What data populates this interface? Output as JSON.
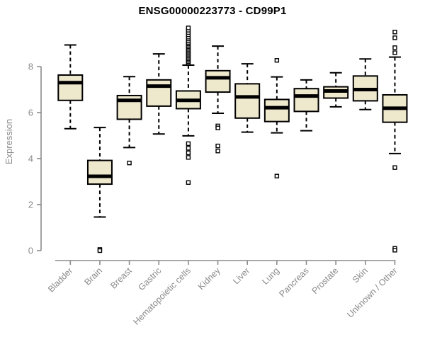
{
  "chart_data": {
    "type": "boxplot",
    "title": "ENSG00000223773 - CD99P1",
    "xlabel": "",
    "ylabel": "Expression",
    "yticks": [
      0,
      2,
      4,
      6,
      8
    ],
    "ylim": [
      0,
      9.8
    ],
    "grid": false,
    "legend": "none",
    "categories": [
      "Bladder",
      "Brain",
      "Breast",
      "Gastric",
      "Hematopoietic cells",
      "Kidney",
      "Liver",
      "Lung",
      "Pancreas",
      "Prostate",
      "Skin",
      "Unknown / Other"
    ],
    "series": [
      {
        "label": "Bladder",
        "whislo": 5.3,
        "q1": 6.53,
        "med": 7.3,
        "q3": 7.63,
        "whishi": 8.94,
        "outliers": []
      },
      {
        "label": "Brain",
        "whislo": 1.46,
        "q1": 2.89,
        "med": 3.23,
        "q3": 3.92,
        "whishi": 5.35,
        "outliers": [
          0.05,
          0.0
        ]
      },
      {
        "label": "Breast",
        "whislo": 4.48,
        "q1": 5.71,
        "med": 6.53,
        "q3": 6.74,
        "whishi": 7.56,
        "outliers": [
          3.81
        ]
      },
      {
        "label": "Gastric",
        "whislo": 5.07,
        "q1": 6.28,
        "med": 7.15,
        "q3": 7.42,
        "whishi": 8.55,
        "outliers": []
      },
      {
        "label": "Hematopoietic cells",
        "whislo": 4.99,
        "q1": 6.17,
        "med": 6.53,
        "q3": 6.94,
        "whishi": 8.06,
        "outliers": [
          2.96,
          4.05,
          4.25,
          4.45,
          4.65,
          8.15,
          8.21,
          8.27,
          8.33,
          8.39,
          8.45,
          8.51,
          8.57,
          8.63,
          8.69,
          8.75,
          8.81,
          8.87,
          8.93,
          8.99,
          9.05,
          9.12,
          9.2,
          9.28,
          9.38,
          9.48,
          9.58,
          9.68
        ]
      },
      {
        "label": "Kidney",
        "whislo": 5.97,
        "q1": 6.89,
        "med": 7.51,
        "q3": 7.82,
        "whishi": 8.89,
        "outliers": [
          5.42,
          5.33,
          4.55,
          4.33
        ]
      },
      {
        "label": "Liver",
        "whislo": 5.15,
        "q1": 5.76,
        "med": 6.68,
        "q3": 7.25,
        "whishi": 8.12,
        "outliers": []
      },
      {
        "label": "Lung",
        "whislo": 5.12,
        "q1": 5.61,
        "med": 6.21,
        "q3": 6.57,
        "whishi": 7.55,
        "outliers": [
          8.27,
          3.24
        ]
      },
      {
        "label": "Pancreas",
        "whislo": 5.21,
        "q1": 6.05,
        "med": 6.72,
        "q3": 7.04,
        "whishi": 7.42,
        "outliers": []
      },
      {
        "label": "Prostate",
        "whislo": 6.25,
        "q1": 6.63,
        "med": 6.94,
        "q3": 7.12,
        "whishi": 7.73,
        "outliers": []
      },
      {
        "label": "Skin",
        "whislo": 6.13,
        "q1": 6.51,
        "med": 7.0,
        "q3": 7.59,
        "whishi": 8.33,
        "outliers": []
      },
      {
        "label": "Unknown / Other",
        "whislo": 4.22,
        "q1": 5.58,
        "med": 6.19,
        "q3": 6.77,
        "whishi": 8.41,
        "outliers": [
          9.5,
          9.25,
          8.82,
          8.6,
          3.61,
          0.1,
          0.02
        ]
      }
    ],
    "colors": {
      "box_fill": "#EEE8CD",
      "box_stroke": "#000000",
      "median": "#000000",
      "whisker": "#000000",
      "outlier_fill": "#FFFFFF",
      "outlier_stroke": "#000000",
      "axis": "#8a8a8a",
      "tick_label": "#8a8a8a",
      "title": "#000000",
      "background": "#FFFFFF"
    }
  }
}
